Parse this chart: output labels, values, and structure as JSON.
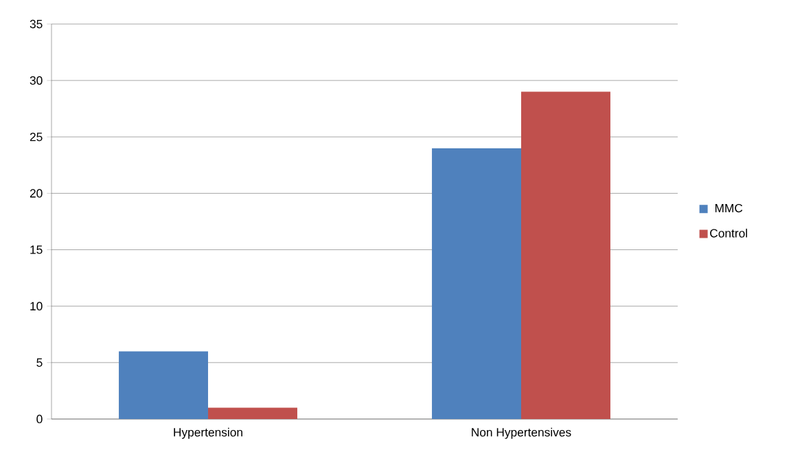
{
  "chart_data": {
    "type": "bar",
    "categories": [
      "Hypertension",
      "Non Hypertensives"
    ],
    "series": [
      {
        "name": "MMC",
        "color": "#4f81bd",
        "values": [
          6,
          24
        ]
      },
      {
        "name": "Control",
        "color": "#c0504d",
        "values": [
          1,
          29
        ]
      }
    ],
    "ylim": [
      0,
      35
    ],
    "yticks": [
      0,
      5,
      10,
      15,
      20,
      25,
      30,
      35
    ],
    "grid": "y",
    "legend": "right"
  }
}
